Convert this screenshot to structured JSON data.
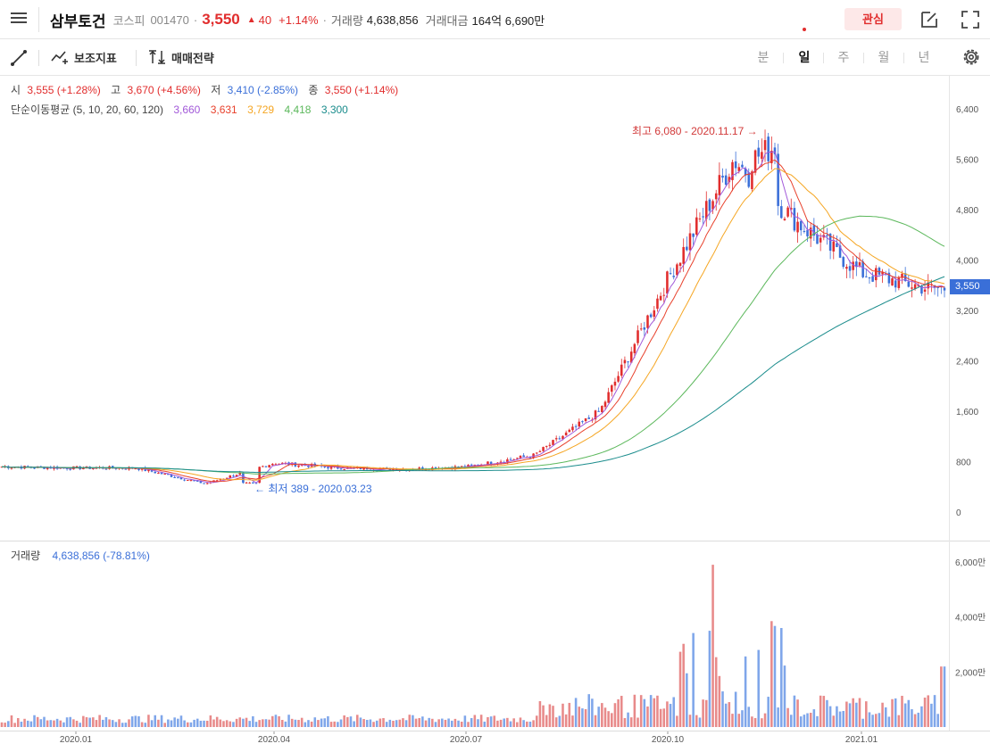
{
  "header": {
    "stock_name": "삼부토건",
    "market": "코스피",
    "code": "001470",
    "price": "3,550",
    "change": "40",
    "change_pct": "+1.14%",
    "volume_label": "거래량",
    "volume_value": "4,638,856",
    "amount_label": "거래대금",
    "amount_value": "164억 6,690만",
    "fav_label": "관심",
    "dot": "·"
  },
  "toolbar": {
    "indicator_label": "보조지표",
    "strategy_label": "매매전략",
    "periods": [
      "분",
      "일",
      "주",
      "월",
      "년"
    ],
    "active_period": "일"
  },
  "ohlc": {
    "open_label": "시",
    "open_value": "3,555 (+1.28%)",
    "high_label": "고",
    "high_value": "3,670 (+4.56%)",
    "low_label": "저",
    "low_value": "3,410 (-2.85%)",
    "close_label": "종",
    "close_value": "3,550 (+1.14%)"
  },
  "ma": {
    "label": "단순이동평균 (5, 10, 20, 60, 120)",
    "values": [
      "3,660",
      "3,631",
      "3,729",
      "4,418",
      "3,300"
    ],
    "colors": [
      "#a259d9",
      "#e8412c",
      "#f5a623",
      "#5cb85c",
      "#1a8c8c"
    ]
  },
  "annotations": {
    "high": "최고 6,080 - 2020.11.17",
    "low": "최저 389 - 2020.03.23"
  },
  "price_axis": [
    "6,400",
    "5,600",
    "4,800",
    "4,000",
    "3,200",
    "2,400",
    "1,600",
    "800",
    "0"
  ],
  "current_price_tag": "3,550",
  "volume_panel": {
    "label": "거래량",
    "value": "4,638,856 (-78.81%)",
    "axis": [
      "6,000만",
      "4,000만",
      "2,000만"
    ]
  },
  "date_axis": [
    "2020.01",
    "2020.04",
    "2020.07",
    "2020.10",
    "2021.01"
  ],
  "colors": {
    "up": "#e12d2d",
    "down": "#3a6fd8",
    "up_vol": "#e88a8a",
    "down_vol": "#7fa6ea"
  },
  "chart_data": {
    "type": "candlestick",
    "x_range": [
      "2019-12",
      "2021-02"
    ],
    "ylim": [
      0,
      6400
    ],
    "ma_periods": [
      5,
      10,
      20,
      60,
      120
    ],
    "price_close_monthly": [
      {
        "month": "2019-12",
        "close": 720
      },
      {
        "month": "2020-01",
        "close": 700
      },
      {
        "month": "2020-02",
        "close": 700
      },
      {
        "month": "2020-03",
        "close": 450
      },
      {
        "month": "2020-04",
        "close": 780
      },
      {
        "month": "2020-05",
        "close": 700
      },
      {
        "month": "2020-06",
        "close": 680
      },
      {
        "month": "2020-07",
        "close": 720
      },
      {
        "month": "2020-08",
        "close": 900
      },
      {
        "month": "2020-09",
        "close": 1600
      },
      {
        "month": "2020-10",
        "close": 3700
      },
      {
        "month": "2020-11",
        "close": 5600
      },
      {
        "month": "2020-12",
        "close": 4600
      },
      {
        "month": "2021-01",
        "close": 3800
      },
      {
        "month": "2021-02",
        "close": 3550
      }
    ],
    "high": 6080,
    "low": 389,
    "volume_axis_max": 6000
  }
}
